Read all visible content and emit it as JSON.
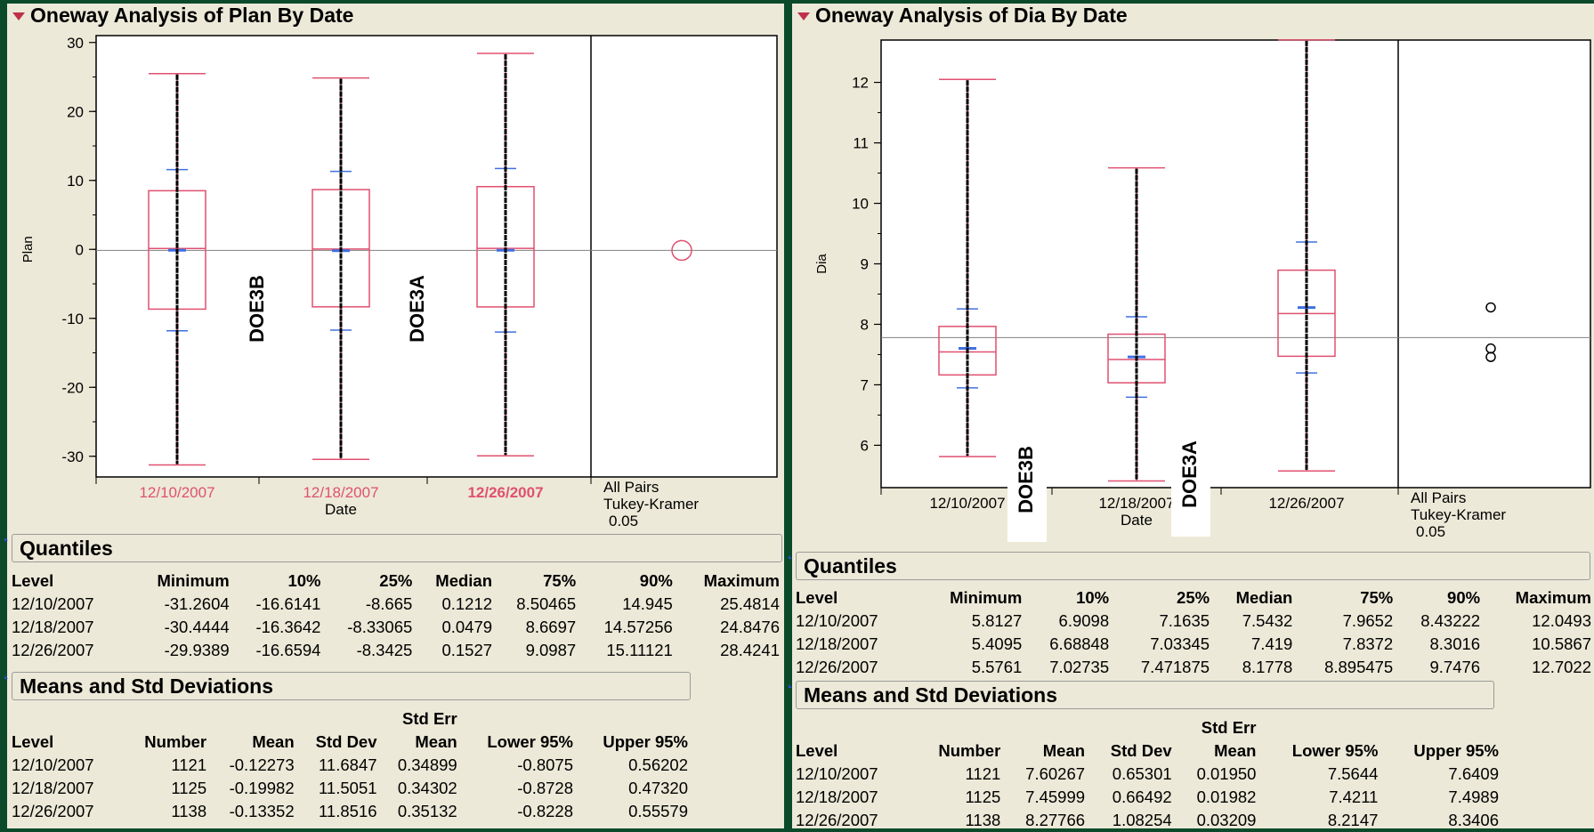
{
  "left": {
    "title": "Oneway Analysis of Plan By Date",
    "ylabel": "Plan",
    "xlabel": "Date",
    "compare": [
      "All Pairs",
      "Tukey-Kramer",
      "0.05"
    ],
    "annotations": [
      "DOE3B",
      "DOE3A"
    ]
  },
  "right": {
    "title": "Oneway Analysis of Dia By Date",
    "ylabel": "Dia",
    "xlabel": "Date",
    "compare": [
      "All Pairs",
      "Tukey-Kramer",
      "0.05"
    ],
    "annotations": [
      "DOE3B",
      "DOE3A"
    ]
  },
  "chart_data": [
    {
      "type": "box",
      "title": "Oneway Analysis of Plan By Date",
      "xlabel": "Date",
      "ylabel": "Plan",
      "ylim": [
        -33,
        31
      ],
      "yticks": [
        -30,
        -20,
        -10,
        0,
        10,
        20,
        30
      ],
      "categories": [
        "12/10/2007",
        "12/18/2007",
        "12/26/2007"
      ],
      "grand_mean": -0.15,
      "boxes": [
        {
          "min": -31.2604,
          "q1": -8.665,
          "median": 0.1212,
          "q3": 8.50465,
          "max": 25.4814,
          "mean": -0.12273,
          "std_dev": 11.6847
        },
        {
          "min": -30.4444,
          "q1": -8.33065,
          "median": 0.0479,
          "q3": 8.6697,
          "max": 24.8476,
          "mean": -0.19982,
          "std_dev": 11.5051
        },
        {
          "min": -29.9389,
          "q1": -8.3425,
          "median": 0.1527,
          "q3": 9.0987,
          "max": 28.4241,
          "mean": -0.13352,
          "std_dev": 11.8516
        }
      ]
    },
    {
      "type": "box",
      "title": "Oneway Analysis of Dia By Date",
      "xlabel": "Date",
      "ylabel": "Dia",
      "ylim": [
        5.3,
        12.7
      ],
      "yticks": [
        6,
        7,
        8,
        9,
        10,
        11,
        12
      ],
      "categories": [
        "12/10/2007",
        "12/18/2007",
        "12/26/2007"
      ],
      "grand_mean": 7.78,
      "boxes": [
        {
          "min": 5.8127,
          "q1": 7.1635,
          "median": 7.5432,
          "q3": 7.9652,
          "max": 12.0493,
          "mean": 7.60267,
          "std_dev": 0.65301
        },
        {
          "min": 5.4095,
          "q1": 7.03345,
          "median": 7.419,
          "q3": 7.8372,
          "max": 10.5867,
          "mean": 7.45999,
          "std_dev": 0.66492
        },
        {
          "min": 5.5761,
          "q1": 7.471875,
          "median": 8.1778,
          "q3": 8.895475,
          "max": 12.7022,
          "mean": 8.27766,
          "std_dev": 1.08254
        }
      ]
    }
  ],
  "quantiles_left": {
    "title": "Quantiles",
    "headers": [
      "Level",
      "Minimum",
      "10%",
      "25%",
      "Median",
      "75%",
      "90%",
      "Maximum"
    ],
    "rows": [
      [
        "12/10/2007",
        "-31.2604",
        "-16.6141",
        "-8.665",
        "0.1212",
        "8.50465",
        "14.945",
        "25.4814"
      ],
      [
        "12/18/2007",
        "-30.4444",
        "-16.3642",
        "-8.33065",
        "0.0479",
        "8.6697",
        "14.57256",
        "24.8476"
      ],
      [
        "12/26/2007",
        "-29.9389",
        "-16.6594",
        "-8.3425",
        "0.1527",
        "9.0987",
        "15.11121",
        "28.4241"
      ]
    ]
  },
  "means_left": {
    "title": "Means and Std Deviations",
    "header_top": "Std Err",
    "headers": [
      "Level",
      "Number",
      "Mean",
      "Std Dev",
      "Mean",
      "Lower 95%",
      "Upper 95%"
    ],
    "rows": [
      [
        "12/10/2007",
        "1121",
        "-0.12273",
        "11.6847",
        "0.34899",
        "-0.8075",
        "0.56202"
      ],
      [
        "12/18/2007",
        "1125",
        "-0.19982",
        "11.5051",
        "0.34302",
        "-0.8728",
        "0.47320"
      ],
      [
        "12/26/2007",
        "1138",
        "-0.13352",
        "11.8516",
        "0.35132",
        "-0.8228",
        "0.55579"
      ]
    ]
  },
  "quantiles_right": {
    "title": "Quantiles",
    "headers": [
      "Level",
      "Minimum",
      "10%",
      "25%",
      "Median",
      "75%",
      "90%",
      "Maximum"
    ],
    "rows": [
      [
        "12/10/2007",
        "5.8127",
        "6.9098",
        "7.1635",
        "7.5432",
        "7.9652",
        "8.43222",
        "12.0493"
      ],
      [
        "12/18/2007",
        "5.4095",
        "6.68848",
        "7.03345",
        "7.419",
        "7.8372",
        "8.3016",
        "10.5867"
      ],
      [
        "12/26/2007",
        "5.5761",
        "7.02735",
        "7.471875",
        "8.1778",
        "8.895475",
        "9.7476",
        "12.7022"
      ]
    ]
  },
  "means_right": {
    "title": "Means and Std Deviations",
    "header_top": "Std Err",
    "headers": [
      "Level",
      "Number",
      "Mean",
      "Std Dev",
      "Mean",
      "Lower 95%",
      "Upper 95%"
    ],
    "rows": [
      [
        "12/10/2007",
        "1121",
        "7.60267",
        "0.65301",
        "0.01950",
        "7.5644",
        "7.6409"
      ],
      [
        "12/18/2007",
        "1125",
        "7.45999",
        "0.66492",
        "0.01982",
        "7.4211",
        "7.4989"
      ],
      [
        "12/26/2007",
        "1138",
        "8.27766",
        "1.08254",
        "0.03209",
        "8.2147",
        "8.3406"
      ]
    ]
  },
  "colors": {
    "background": "#0a4a2a",
    "panel": "#ece9d8",
    "box": "#e05070",
    "quantile_tick": "#4070e0",
    "grid": "#808080"
  }
}
